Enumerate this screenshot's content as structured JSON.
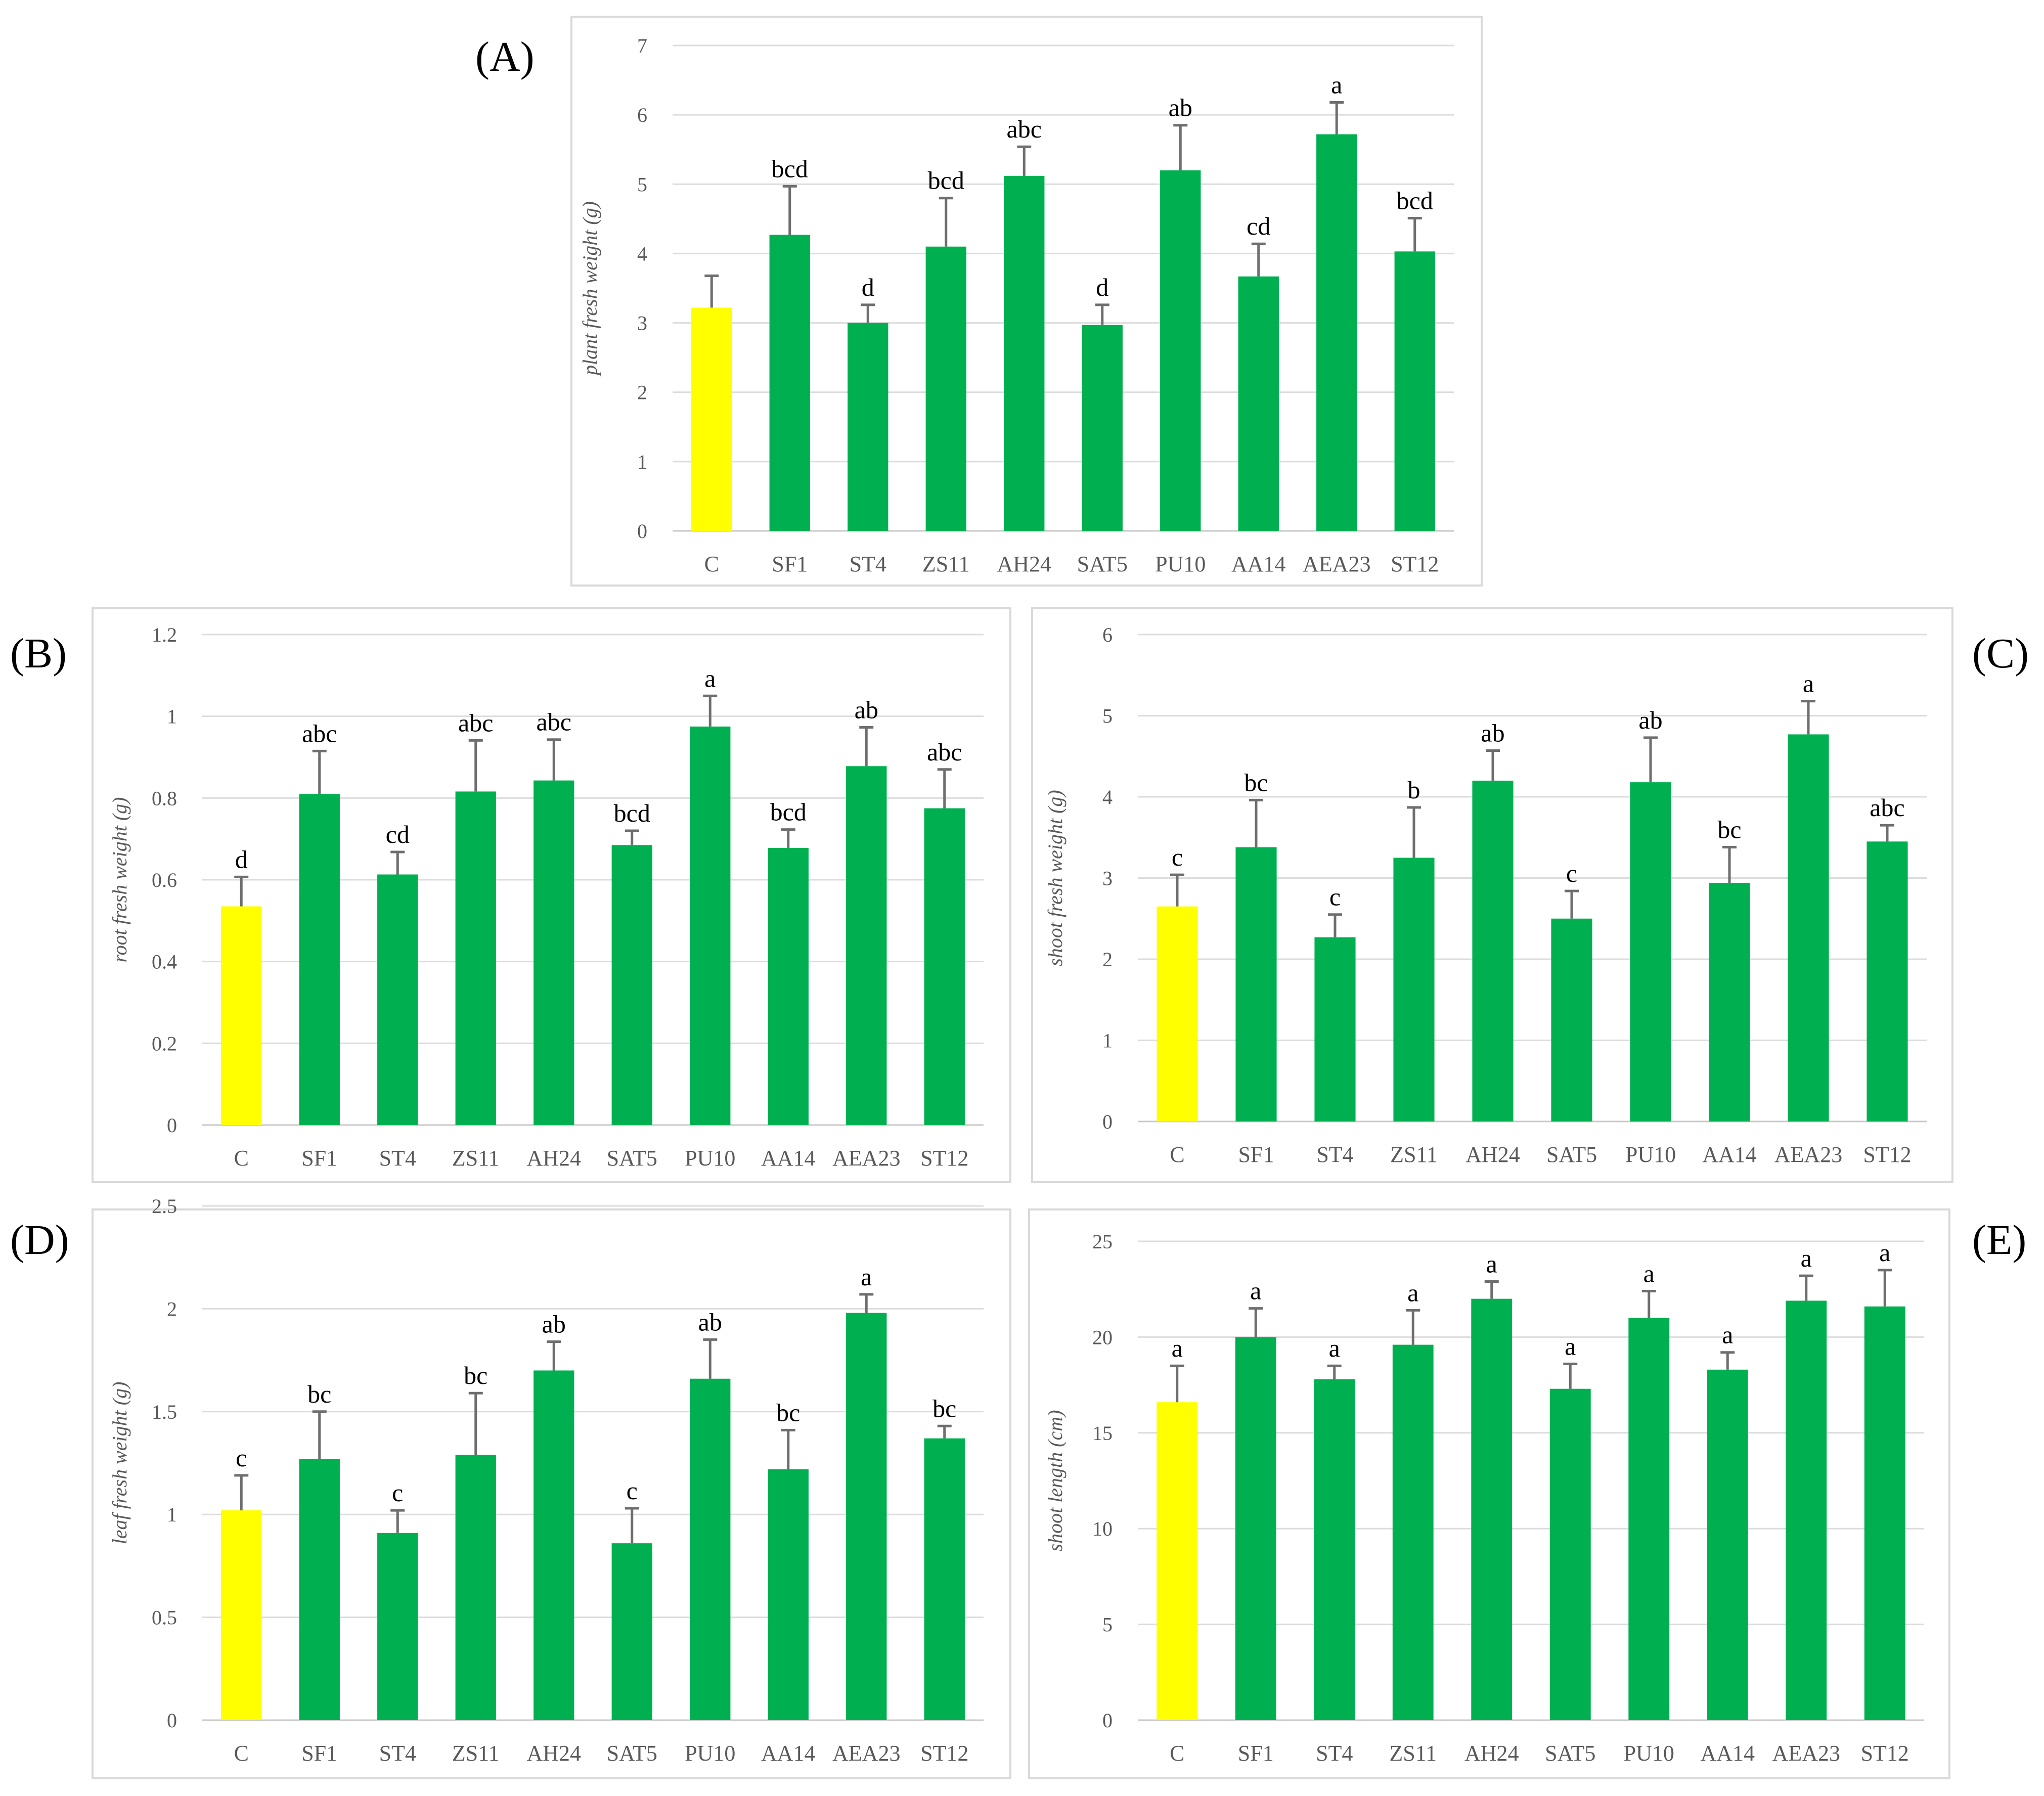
{
  "figure": {
    "colors": {
      "control": "#ffff00",
      "treatment": "#00b050"
    },
    "control_category": "C"
  },
  "chart_data": [
    {
      "panel_label": "(A)",
      "type": "bar",
      "title": "",
      "xlabel": "",
      "ylabel": "plant fresh weight (g)",
      "ylim": [
        0,
        7
      ],
      "yticks": [
        0,
        1,
        2,
        3,
        4,
        5,
        6,
        7
      ],
      "ytick_labels": [
        "0",
        "1",
        "2",
        "3",
        "4",
        "5",
        "6",
        "7"
      ],
      "grid": true,
      "categories": [
        "C",
        "SF1",
        "ST4",
        "ZS11",
        "AH24",
        "SAT5",
        "PU10",
        "AA14",
        "AEA23",
        "ST12"
      ],
      "values": [
        3.22,
        4.27,
        3.0,
        4.1,
        5.12,
        2.97,
        5.2,
        3.67,
        5.72,
        4.03
      ],
      "errors": [
        0.46,
        0.7,
        0.26,
        0.7,
        0.42,
        0.29,
        0.65,
        0.47,
        0.46,
        0.48
      ],
      "significance": [
        "",
        "bcd",
        "d",
        "bcd",
        "abc",
        "d",
        "ab",
        "cd",
        "a",
        "bcd"
      ]
    },
    {
      "panel_label": "(B)",
      "type": "bar",
      "title": "",
      "xlabel": "",
      "ylabel": "root fresh weight (g)",
      "ylim": [
        0,
        1.2
      ],
      "yticks": [
        0,
        0.2,
        0.4,
        0.6,
        0.8,
        1.0,
        1.2
      ],
      "ytick_labels": [
        "0",
        "0.2",
        "0.4",
        "0.6",
        "0.8",
        "1",
        "1.2"
      ],
      "grid": true,
      "categories": [
        "C",
        "SF1",
        "ST4",
        "ZS11",
        "AH24",
        "SAT5",
        "PU10",
        "AA14",
        "AEA23",
        "ST12"
      ],
      "values": [
        0.535,
        0.81,
        0.613,
        0.816,
        0.843,
        0.685,
        0.975,
        0.678,
        0.878,
        0.775
      ],
      "errors": [
        0.072,
        0.105,
        0.055,
        0.125,
        0.1,
        0.035,
        0.075,
        0.045,
        0.095,
        0.095
      ],
      "significance": [
        "d",
        "abc",
        "cd",
        "abc",
        "abc",
        "bcd",
        "a",
        "bcd",
        "ab",
        "abc"
      ]
    },
    {
      "panel_label": "(C)",
      "type": "bar",
      "title": "",
      "xlabel": "",
      "ylabel": "shoot fresh weight (g)",
      "ylim": [
        0,
        6
      ],
      "yticks": [
        0,
        1,
        2,
        3,
        4,
        5,
        6
      ],
      "ytick_labels": [
        "0",
        "1",
        "2",
        "3",
        "4",
        "5",
        "6"
      ],
      "grid": true,
      "categories": [
        "C",
        "SF1",
        "ST4",
        "ZS11",
        "AH24",
        "SAT5",
        "PU10",
        "AA14",
        "AEA23",
        "ST12"
      ],
      "values": [
        2.65,
        3.38,
        2.27,
        3.25,
        4.2,
        2.5,
        4.18,
        2.94,
        4.77,
        3.45
      ],
      "errors": [
        0.39,
        0.58,
        0.28,
        0.62,
        0.37,
        0.34,
        0.55,
        0.44,
        0.41,
        0.2
      ],
      "significance": [
        "c",
        "bc",
        "c",
        "b",
        "ab",
        "c",
        "ab",
        "bc",
        "a",
        "abc"
      ]
    },
    {
      "panel_label": "(D)",
      "type": "bar",
      "title": "",
      "xlabel": "",
      "ylabel": "leaf fresh weight (g)",
      "ylim": [
        0,
        2.5
      ],
      "yticks": [
        0,
        0.5,
        1.0,
        1.5,
        2.0,
        2.5
      ],
      "ytick_labels": [
        "0",
        "0.5",
        "1",
        "1.5",
        "2",
        "2.5"
      ],
      "grid": true,
      "categories": [
        "C",
        "SF1",
        "ST4",
        "ZS11",
        "AH24",
        "SAT5",
        "PU10",
        "AA14",
        "AEA23",
        "ST12"
      ],
      "values": [
        1.02,
        1.27,
        0.91,
        1.29,
        1.7,
        0.86,
        1.66,
        1.22,
        1.98,
        1.37
      ],
      "errors": [
        0.17,
        0.23,
        0.11,
        0.3,
        0.14,
        0.17,
        0.19,
        0.19,
        0.09,
        0.06
      ],
      "significance": [
        "c",
        "bc",
        "c",
        "bc",
        "ab",
        "c",
        "ab",
        "bc",
        "a",
        "bc"
      ]
    },
    {
      "panel_label": "(E)",
      "type": "bar",
      "title": "",
      "xlabel": "",
      "ylabel": "shoot length (cm)",
      "ylim": [
        0,
        25
      ],
      "yticks": [
        0,
        5,
        10,
        15,
        20,
        25
      ],
      "ytick_labels": [
        "0",
        "5",
        "10",
        "15",
        "20",
        "25"
      ],
      "grid": true,
      "categories": [
        "C",
        "SF1",
        "ST4",
        "ZS11",
        "AH24",
        "SAT5",
        "PU10",
        "AA14",
        "AEA23",
        "ST12"
      ],
      "values": [
        16.6,
        20.0,
        17.8,
        19.6,
        22.0,
        17.3,
        21.0,
        18.3,
        21.9,
        21.6
      ],
      "errors": [
        1.9,
        1.5,
        0.7,
        1.8,
        0.9,
        1.3,
        1.4,
        0.9,
        1.3,
        1.9
      ],
      "significance": [
        "a",
        "a",
        "a",
        "a",
        "a",
        "a",
        "a",
        "a",
        "a",
        "a"
      ]
    }
  ]
}
